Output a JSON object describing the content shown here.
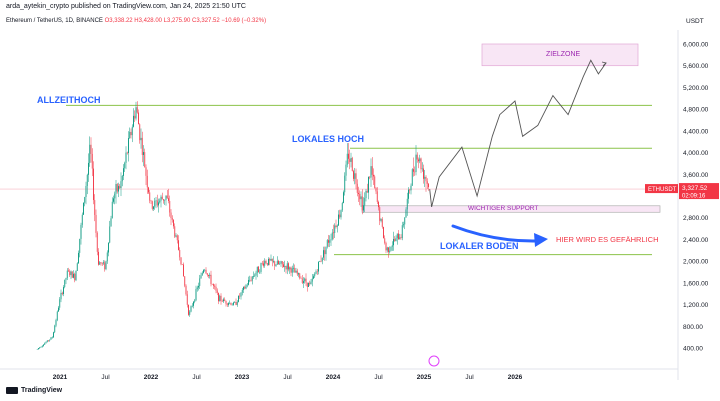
{
  "header": {
    "byline": "arda_aytekin_crypto published on TradingView.com, Jan 24, 2025 21:50 UTC",
    "symbol": "Ethereum / TetherUS, 1D, BINANCE",
    "ohlc": "O3,338.22  H3,428.00  L3,275.90  C3,327.52  −10.69 (−0.32%)",
    "currency": "USDT"
  },
  "price_tag": {
    "symbol": "ETHUSDT",
    "price": "3,327.52",
    "countdown": "02:09:16"
  },
  "branding": {
    "logo_text": "TradingView"
  },
  "annotations": {
    "ath": "ALLZEITHOCH",
    "local_high": "LOKALES HOCH",
    "local_low": "LOKALER BODEN",
    "support": "WICHTIGER SUPPORT",
    "target": "ZIELZONE",
    "danger": "HIER WIRD ES GEFÄHRLICH"
  },
  "colors": {
    "up": "#089981",
    "down": "#f23645",
    "level_line": "#8bc34a",
    "label_blue": "#2962ff",
    "zone_fill": "#f8e6f5",
    "zone_border": "#e1a7d6"
  },
  "chart_data": {
    "type": "candlestick",
    "title": "Ethereum / TetherUS, 1D, BINANCE",
    "x_ticks": [
      "2021",
      "Jul",
      "2022",
      "Jul",
      "2023",
      "Jul",
      "2024",
      "Jul",
      "2025",
      "Jul",
      "2026"
    ],
    "y_ticks": [
      400,
      800,
      1200,
      1600,
      2000,
      2400,
      2800,
      3200,
      3600,
      4000,
      4400,
      4800,
      5200,
      5600,
      6000
    ],
    "ylim": [
      0,
      6200
    ],
    "price_path": [
      [
        "2020-10",
        380
      ],
      [
        "2020-12",
        600
      ],
      [
        "2021-01",
        1300
      ],
      [
        "2021-02",
        1800
      ],
      [
        "2021-03",
        1700
      ],
      [
        "2021-05",
        4100
      ],
      [
        "2021-06",
        2000
      ],
      [
        "2021-07",
        1900
      ],
      [
        "2021-08",
        3200
      ],
      [
        "2021-09",
        3400
      ],
      [
        "2021-11",
        4850
      ],
      [
        "2022-01",
        3000
      ],
      [
        "2022-03",
        3200
      ],
      [
        "2022-05",
        2000
      ],
      [
        "2022-06",
        1000
      ],
      [
        "2022-08",
        1900
      ],
      [
        "2022-10",
        1300
      ],
      [
        "2022-12",
        1200
      ],
      [
        "2023-02",
        1650
      ],
      [
        "2023-04",
        2000
      ],
      [
        "2023-07",
        1900
      ],
      [
        "2023-10",
        1550
      ],
      [
        "2023-12",
        2250
      ],
      [
        "2024-02",
        2900
      ],
      [
        "2024-03",
        4000
      ],
      [
        "2024-05",
        3000
      ],
      [
        "2024-06",
        3700
      ],
      [
        "2024-08",
        2200
      ],
      [
        "2024-10",
        2500
      ],
      [
        "2024-12",
        4000
      ],
      [
        "2025-01-24",
        3327.52
      ]
    ],
    "projection": [
      [
        "2025-01-24",
        3327.52
      ],
      [
        "2025-02",
        3000
      ],
      [
        "2025-03",
        3550
      ],
      [
        "2025-06",
        4100
      ],
      [
        "2025-08",
        3200
      ],
      [
        "2025-10",
        4300
      ],
      [
        "2025-11",
        4700
      ],
      [
        "2026-01",
        4950
      ],
      [
        "2026-02",
        4300
      ],
      [
        "2026-04",
        4500
      ],
      [
        "2026-06",
        5050
      ],
      [
        "2026-08",
        4700
      ],
      [
        "2026-10",
        5400
      ],
      [
        "2026-11",
        5700
      ],
      [
        "2026-12",
        5450
      ],
      [
        "2027-01",
        5650
      ]
    ],
    "levels": {
      "ath": 4870,
      "local_high": 4080,
      "local_low": 2120,
      "current": 3327.52
    },
    "zones": {
      "support": [
        2900,
        3020
      ],
      "target": [
        5600,
        6000
      ]
    }
  }
}
